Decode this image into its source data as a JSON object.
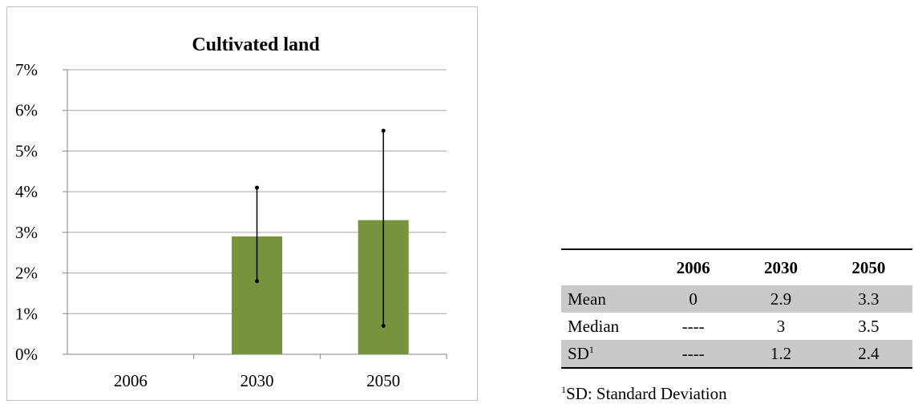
{
  "chart_data": {
    "type": "bar",
    "title": "Cultivated land",
    "categories": [
      "2006",
      "2030",
      "2050"
    ],
    "values": [
      0,
      2.9,
      3.3
    ],
    "error_bars": [
      null,
      {
        "low": 1.8,
        "high": 4.1
      },
      {
        "low": 0.7,
        "high": 5.5
      }
    ],
    "unit": "%",
    "ylim": [
      0,
      7
    ],
    "yticks": [
      "0%",
      "1%",
      "2%",
      "3%",
      "4%",
      "5%",
      "6%",
      "7%"
    ],
    "grid": true,
    "bar_color": "#77933c",
    "error_color": "#000000"
  },
  "table": {
    "headers": [
      "",
      "2006",
      "2030",
      "2050"
    ],
    "rows": [
      {
        "label": "Mean",
        "sup": "",
        "cells": [
          "0",
          "2.9",
          "3.3"
        ],
        "shaded": true
      },
      {
        "label": "Median",
        "sup": "",
        "cells": [
          "----",
          "3",
          "3.5"
        ],
        "shaded": false
      },
      {
        "label": "SD",
        "sup": "1",
        "cells": [
          "----",
          "1.2",
          "2.4"
        ],
        "shaded": true
      }
    ],
    "footnote": {
      "sup": "1",
      "text": "SD: Standard Deviation"
    }
  }
}
